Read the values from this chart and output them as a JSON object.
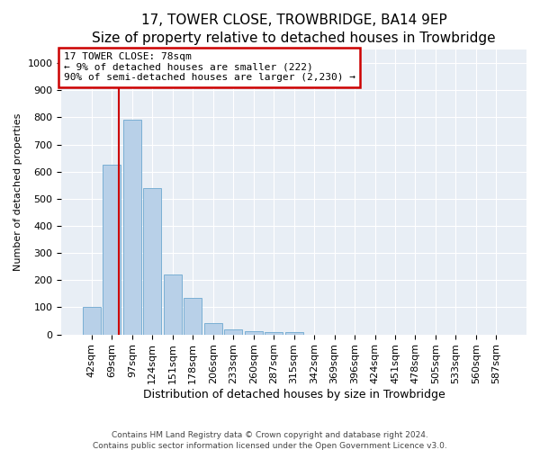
{
  "title1": "17, TOWER CLOSE, TROWBRIDGE, BA14 9EP",
  "title2": "Size of property relative to detached houses in Trowbridge",
  "xlabel": "Distribution of detached houses by size in Trowbridge",
  "ylabel": "Number of detached properties",
  "bar_labels": [
    "42sqm",
    "69sqm",
    "97sqm",
    "124sqm",
    "151sqm",
    "178sqm",
    "206sqm",
    "233sqm",
    "260sqm",
    "287sqm",
    "315sqm",
    "342sqm",
    "369sqm",
    "396sqm",
    "424sqm",
    "451sqm",
    "478sqm",
    "505sqm",
    "533sqm",
    "560sqm",
    "587sqm"
  ],
  "bar_values": [
    102,
    625,
    790,
    540,
    220,
    135,
    42,
    18,
    12,
    10,
    10,
    0,
    0,
    0,
    0,
    0,
    0,
    0,
    0,
    0,
    0
  ],
  "bar_color": "#b8d0e8",
  "bar_edge_color": "#7aafd4",
  "vline_color": "#cc0000",
  "vline_x_data": 1.32,
  "ylim": [
    0,
    1050
  ],
  "yticks": [
    0,
    100,
    200,
    300,
    400,
    500,
    600,
    700,
    800,
    900,
    1000
  ],
  "annotation_line1": "17 TOWER CLOSE: 78sqm",
  "annotation_line2": "← 9% of detached houses are smaller (222)",
  "annotation_line3": "90% of semi-detached houses are larger (2,230) →",
  "footer1": "Contains HM Land Registry data © Crown copyright and database right 2024.",
  "footer2": "Contains public sector information licensed under the Open Government Licence v3.0.",
  "plot_bg_color": "#e8eef5",
  "title1_fontsize": 11,
  "title2_fontsize": 10,
  "xlabel_fontsize": 9,
  "ylabel_fontsize": 8,
  "tick_fontsize": 8,
  "annot_fontsize": 8,
  "footer_fontsize": 6.5
}
